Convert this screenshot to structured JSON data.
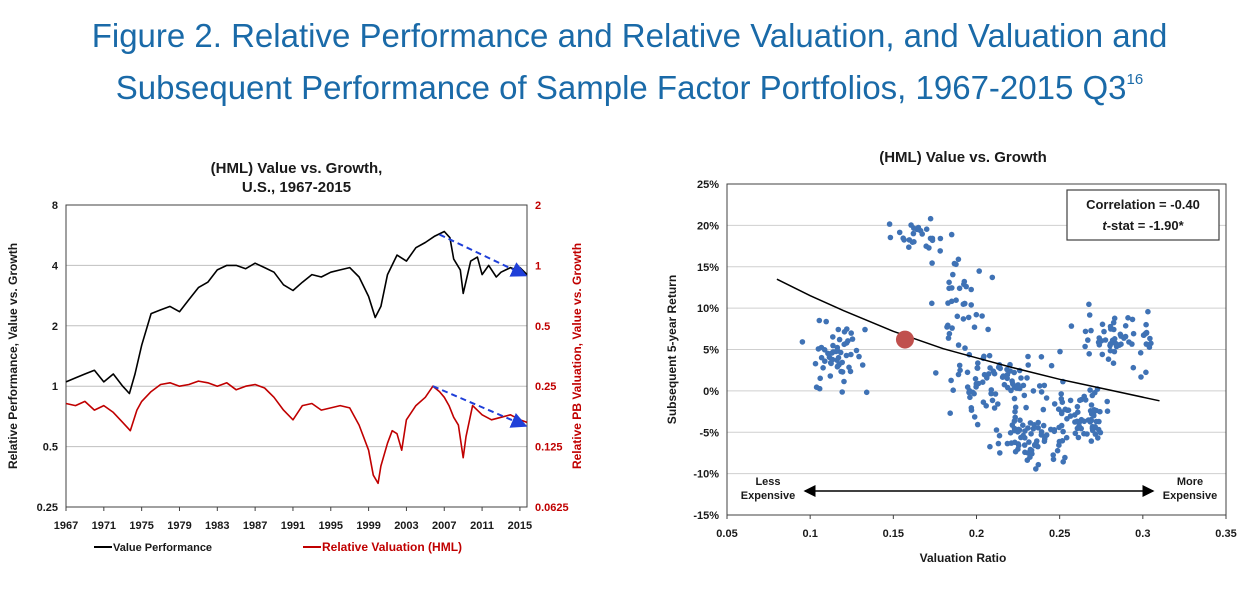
{
  "figure": {
    "title_line1": "Figure 2. Relative Performance and Relative Valuation, and Valuation and",
    "title_line2": "Subsequent Performance of Sample Factor Portfolios, 1967-2015 Q3",
    "title_superscript": "16"
  },
  "colors": {
    "title": "#1a6aa8",
    "value_line": "#000000",
    "valuation_line": "#c00000",
    "dots": "#3f72b5",
    "highlight": "#c0504d",
    "trend_arrow": "#1f3fd8"
  },
  "chart_data": [
    {
      "type": "line",
      "title_line1": "(HML) Value vs. Growth,",
      "title_line2": "U.S., 1967-2015",
      "ylabel": "Relative Performance, Value vs. Growth",
      "y2label": "Relative PB Valuation, Value vs. Growth",
      "y_scale": "log2",
      "ylim": [
        0.25,
        8
      ],
      "y2lim": [
        0.0625,
        2
      ],
      "xlim": [
        1967,
        2015.75
      ],
      "x_ticks": [
        "1967",
        "1971",
        "1975",
        "1979",
        "1983",
        "1987",
        "1991",
        "1995",
        "1999",
        "2003",
        "2007",
        "2011",
        "2015"
      ],
      "y_ticks": [
        "0.25",
        "0.5",
        "1",
        "2",
        "4",
        "8"
      ],
      "y2_ticks": [
        "0.0625",
        "0.125",
        "0.25",
        "0.5",
        "1",
        "2"
      ],
      "legend_position": "bottom",
      "series": [
        {
          "name": "Value Performance",
          "axis": "left",
          "x": [
            1967,
            1968,
            1969,
            1970,
            1971,
            1972,
            1973,
            1973.7,
            1974.3,
            1975,
            1976,
            1977,
            1978,
            1979,
            1980,
            1981,
            1982,
            1983,
            1984,
            1985,
            1986,
            1987,
            1988,
            1989,
            1990,
            1991,
            1992,
            1993,
            1994,
            1995,
            1996,
            1997,
            1998,
            1999,
            1999.7,
            2000.3,
            2001,
            2002,
            2003,
            2004,
            2005,
            2006,
            2007,
            2007.6,
            2008,
            2008.7,
            2009,
            2009.8,
            2010.5,
            2011,
            2011.7,
            2012.5,
            2013,
            2014,
            2014.6,
            2015,
            2015.75
          ],
          "y": [
            1.05,
            1.1,
            1.15,
            1.2,
            1.05,
            1.15,
            1.0,
            0.92,
            1.15,
            1.6,
            2.3,
            2.4,
            2.5,
            2.35,
            2.7,
            3.1,
            3.3,
            3.8,
            4.0,
            4.0,
            3.85,
            4.1,
            3.9,
            3.7,
            3.2,
            3.0,
            3.3,
            3.6,
            3.5,
            3.7,
            3.8,
            3.9,
            3.5,
            2.8,
            2.2,
            2.5,
            3.6,
            4.5,
            4.2,
            4.9,
            5.2,
            5.6,
            5.9,
            5.5,
            4.3,
            3.8,
            2.9,
            4.2,
            4.4,
            3.6,
            4.0,
            3.5,
            3.7,
            3.9,
            3.8,
            3.9,
            3.6
          ]
        },
        {
          "name": "Relative Valuation (HML)",
          "axis": "right",
          "x": [
            1967,
            1968,
            1969,
            1970,
            1971,
            1972,
            1973,
            1973.8,
            1974.5,
            1975,
            1976,
            1977,
            1978,
            1979,
            1980,
            1981,
            1982,
            1983,
            1984,
            1985,
            1986,
            1987,
            1988,
            1989,
            1990,
            1991,
            1992,
            1993,
            1994,
            1995,
            1996,
            1997,
            1998,
            1999,
            1999.5,
            2000,
            2000.3,
            2001,
            2001.5,
            2002,
            2002.5,
            2003,
            2004,
            2005,
            2005.8,
            2006.5,
            2007,
            2007.5,
            2008,
            2008.5,
            2009,
            2009.3,
            2010,
            2011,
            2012,
            2013,
            2014,
            2015,
            2015.75
          ],
          "y": [
            0.205,
            0.2,
            0.21,
            0.19,
            0.2,
            0.185,
            0.165,
            0.15,
            0.19,
            0.21,
            0.235,
            0.255,
            0.26,
            0.25,
            0.255,
            0.265,
            0.26,
            0.25,
            0.26,
            0.24,
            0.25,
            0.255,
            0.245,
            0.22,
            0.19,
            0.17,
            0.2,
            0.205,
            0.19,
            0.195,
            0.2,
            0.195,
            0.16,
            0.12,
            0.09,
            0.082,
            0.1,
            0.13,
            0.15,
            0.145,
            0.12,
            0.17,
            0.2,
            0.22,
            0.25,
            0.235,
            0.22,
            0.2,
            0.175,
            0.16,
            0.11,
            0.14,
            0.2,
            0.18,
            0.17,
            0.175,
            0.18,
            0.17,
            0.165
          ]
        }
      ],
      "annotations": [
        "trend arrow 2006-2015 on Value Performance",
        "trend arrow 2006-2015 on Relative Valuation (HML)"
      ]
    },
    {
      "type": "scatter",
      "title": "(HML) Value vs. Growth",
      "xlabel": "Valuation Ratio",
      "ylabel": "Subsequent 5-year Return",
      "xlim": [
        0.05,
        0.35
      ],
      "ylim": [
        -0.15,
        0.25
      ],
      "x_ticks": [
        "0.05",
        "0.1",
        "0.15",
        "0.2",
        "0.25",
        "0.3",
        "0.35"
      ],
      "y_ticks": [
        "-15%",
        "-10%",
        "-5%",
        "0%",
        "5%",
        "10%",
        "15%",
        "20%",
        "25%"
      ],
      "correlation_label": "Correlation =  -0.40",
      "tstat_prefix": "t",
      "tstat_suffix": "-stat = -1.90*",
      "left_annotation": [
        "Less",
        "Expensive"
      ],
      "right_annotation": [
        "More",
        "Expensive"
      ],
      "fit_curve": {
        "x": [
          0.08,
          0.1,
          0.12,
          0.15,
          0.18,
          0.2,
          0.22,
          0.25,
          0.28,
          0.31
        ],
        "y": [
          0.135,
          0.115,
          0.097,
          0.072,
          0.051,
          0.04,
          0.029,
          0.014,
          0.001,
          -0.012
        ]
      },
      "highlight_point": {
        "x": 0.157,
        "y": 0.062
      },
      "clusters": [
        {
          "cx": 0.115,
          "cy": 0.04,
          "sx": 0.018,
          "sy": 0.035,
          "n": 55
        },
        {
          "cx": 0.165,
          "cy": 0.19,
          "sx": 0.013,
          "sy": 0.015,
          "n": 25
        },
        {
          "cx": 0.19,
          "cy": 0.1,
          "sx": 0.015,
          "sy": 0.05,
          "n": 40
        },
        {
          "cx": 0.215,
          "cy": 0.01,
          "sx": 0.03,
          "sy": 0.035,
          "n": 90
        },
        {
          "cx": 0.235,
          "cy": -0.06,
          "sx": 0.018,
          "sy": 0.028,
          "n": 70
        },
        {
          "cx": 0.265,
          "cy": -0.03,
          "sx": 0.013,
          "sy": 0.025,
          "n": 60
        },
        {
          "cx": 0.285,
          "cy": 0.06,
          "sx": 0.02,
          "sy": 0.03,
          "n": 60
        }
      ]
    }
  ],
  "legend": {
    "value_label": "Value Performance",
    "valuation_label": "Relative Valuation (HML)"
  }
}
